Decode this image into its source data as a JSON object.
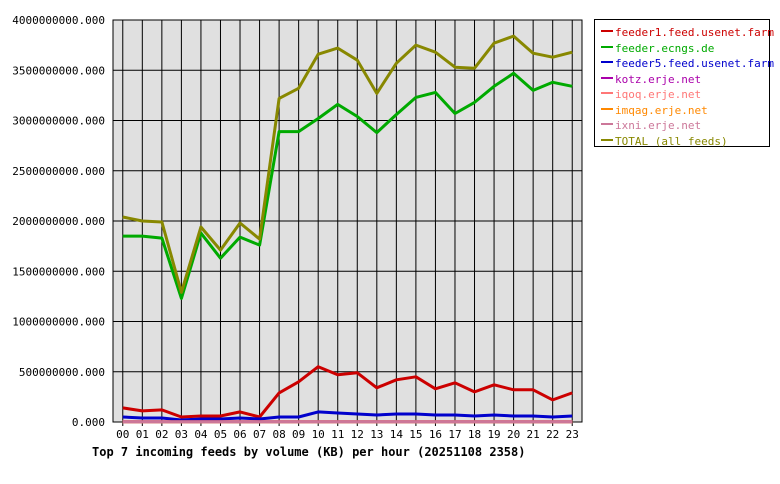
{
  "chart_data": {
    "type": "line",
    "title": "Top 7 incoming feeds by volume (KB) per hour (20251108 2358)",
    "xlabel": "",
    "ylabel": "",
    "categories": [
      "00",
      "01",
      "02",
      "03",
      "04",
      "05",
      "06",
      "07",
      "08",
      "09",
      "10",
      "11",
      "12",
      "13",
      "14",
      "15",
      "16",
      "17",
      "18",
      "19",
      "20",
      "21",
      "22",
      "23"
    ],
    "ylim": [
      0,
      4000000000
    ],
    "yticks": [
      "0.000",
      "500000000.000",
      "1000000000.000",
      "1500000000.000",
      "2000000000.000",
      "2500000000.000",
      "3000000000.000",
      "3500000000.000",
      "4000000000.000"
    ],
    "grid": true,
    "legend_position": "right",
    "series": [
      {
        "name": "feeder1.feed.usenet.farm",
        "color": "#cc0000",
        "values": [
          140000000,
          110000000,
          120000000,
          50000000,
          60000000,
          60000000,
          100000000,
          50000000,
          290000000,
          400000000,
          550000000,
          470000000,
          490000000,
          340000000,
          420000000,
          450000000,
          330000000,
          390000000,
          300000000,
          370000000,
          320000000,
          320000000,
          220000000,
          290000000
        ]
      },
      {
        "name": "feeder.ecngs.de",
        "color": "#00aa00",
        "values": [
          1850000000,
          1850000000,
          1830000000,
          1230000000,
          1880000000,
          1630000000,
          1840000000,
          1760000000,
          2890000000,
          2890000000,
          3020000000,
          3160000000,
          3040000000,
          2880000000,
          3060000000,
          3230000000,
          3280000000,
          3070000000,
          3180000000,
          3340000000,
          3470000000,
          3300000000,
          3380000000,
          3340000000
        ]
      },
      {
        "name": "feeder5.feed.usenet.farm",
        "color": "#0000cc",
        "values": [
          50000000,
          40000000,
          40000000,
          20000000,
          30000000,
          30000000,
          40000000,
          30000000,
          50000000,
          50000000,
          100000000,
          90000000,
          80000000,
          70000000,
          80000000,
          80000000,
          70000000,
          70000000,
          60000000,
          70000000,
          60000000,
          60000000,
          50000000,
          60000000
        ]
      },
      {
        "name": "kotz.erje.net",
        "color": "#aa00aa",
        "values": [
          2000000,
          2000000,
          2000000,
          1000000,
          2000000,
          2000000,
          2000000,
          2000000,
          3000000,
          3000000,
          3000000,
          3000000,
          3000000,
          3000000,
          3000000,
          3000000,
          3000000,
          3000000,
          3000000,
          3000000,
          3000000,
          3000000,
          3000000,
          3000000
        ]
      },
      {
        "name": "iqoq.erje.net",
        "color": "#ff7777",
        "values": [
          1000000,
          1000000,
          1000000,
          1000000,
          1000000,
          1000000,
          1000000,
          1000000,
          1000000,
          1000000,
          1000000,
          1000000,
          1000000,
          1000000,
          1000000,
          1000000,
          1000000,
          1000000,
          1000000,
          1000000,
          1000000,
          1000000,
          1000000,
          1000000
        ]
      },
      {
        "name": "imqag.erje.net",
        "color": "#ff8800",
        "values": [
          1000000,
          1000000,
          1000000,
          1000000,
          1000000,
          1000000,
          1000000,
          1000000,
          1000000,
          1000000,
          1000000,
          1000000,
          1000000,
          1000000,
          1000000,
          1000000,
          1000000,
          1000000,
          1000000,
          1000000,
          1000000,
          1000000,
          1000000,
          1000000
        ]
      },
      {
        "name": "ixni.erje.net",
        "color": "#cc7799",
        "values": [
          1000000,
          1000000,
          1000000,
          1000000,
          1000000,
          1000000,
          1000000,
          1000000,
          1000000,
          1000000,
          1000000,
          1000000,
          1000000,
          1000000,
          1000000,
          1000000,
          1000000,
          1000000,
          1000000,
          1000000,
          1000000,
          1000000,
          1000000,
          1000000
        ]
      },
      {
        "name": "TOTAL (all feeds)",
        "color": "#888800",
        "values": [
          2040000000,
          2000000000,
          1990000000,
          1290000000,
          1940000000,
          1710000000,
          1980000000,
          1820000000,
          3220000000,
          3320000000,
          3660000000,
          3720000000,
          3600000000,
          3270000000,
          3570000000,
          3750000000,
          3680000000,
          3530000000,
          3520000000,
          3770000000,
          3840000000,
          3670000000,
          3630000000,
          3680000000
        ]
      }
    ]
  }
}
